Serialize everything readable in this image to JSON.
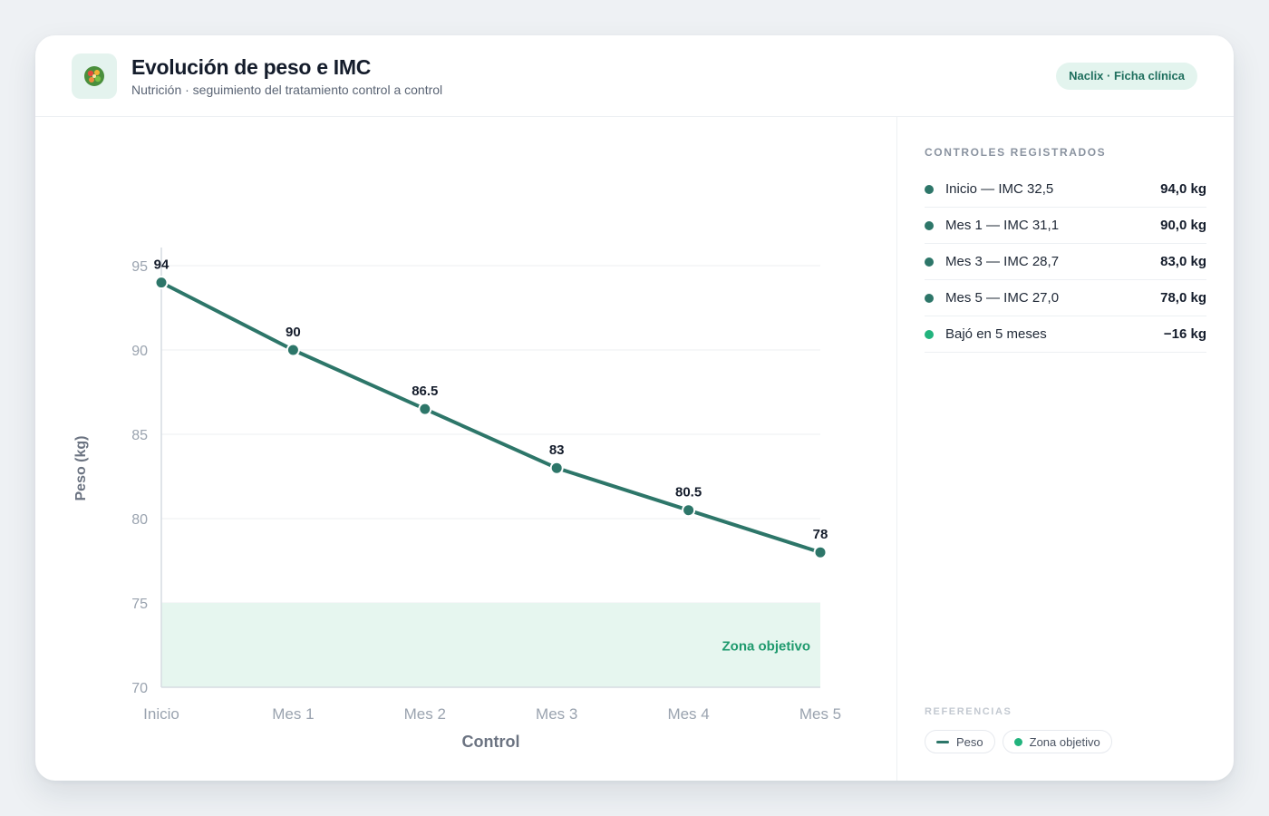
{
  "header": {
    "title": "Evolución de peso e IMC",
    "subtitle": "Nutrición · seguimiento del tratamiento control a control",
    "badge": "Naclix · Ficha clínica",
    "logo_icon": "salad-bowl-icon"
  },
  "chart_data": {
    "type": "line",
    "categories": [
      "Inicio",
      "Mes 1",
      "Mes 2",
      "Mes 3",
      "Mes 4",
      "Mes 5"
    ],
    "series": [
      {
        "name": "Peso",
        "values": [
          94,
          90,
          86.5,
          83,
          80.5,
          78
        ],
        "color": "#2d7669"
      }
    ],
    "xlabel": "Control",
    "ylabel": "Peso (kg)",
    "ylim": [
      70,
      95
    ],
    "yticks": [
      70,
      75,
      80,
      85,
      90,
      95
    ],
    "grid": true,
    "target_zone": {
      "label": "Zona objetivo",
      "from": 70,
      "to": 75,
      "color": "#22b37d"
    }
  },
  "side": {
    "heading": "CONTROLES REGISTRADOS",
    "rows": [
      {
        "label": "Inicio — IMC 32,5",
        "value": "94,0 kg",
        "color": "#2d7669"
      },
      {
        "label": "Mes 1 — IMC 31,1",
        "value": "90,0 kg",
        "color": "#2d7669"
      },
      {
        "label": "Mes 3 — IMC 28,7",
        "value": "83,0 kg",
        "color": "#2d7669"
      },
      {
        "label": "Mes 5 — IMC 27,0",
        "value": "78,0 kg",
        "color": "#2d7669"
      },
      {
        "label": "Bajó en 5 meses",
        "value": "−16 kg",
        "color": "#22b37d"
      }
    ],
    "ref_heading": "REFERENCIAS",
    "refs": [
      {
        "label": "Peso"
      },
      {
        "label": "Zona objetivo"
      }
    ]
  }
}
